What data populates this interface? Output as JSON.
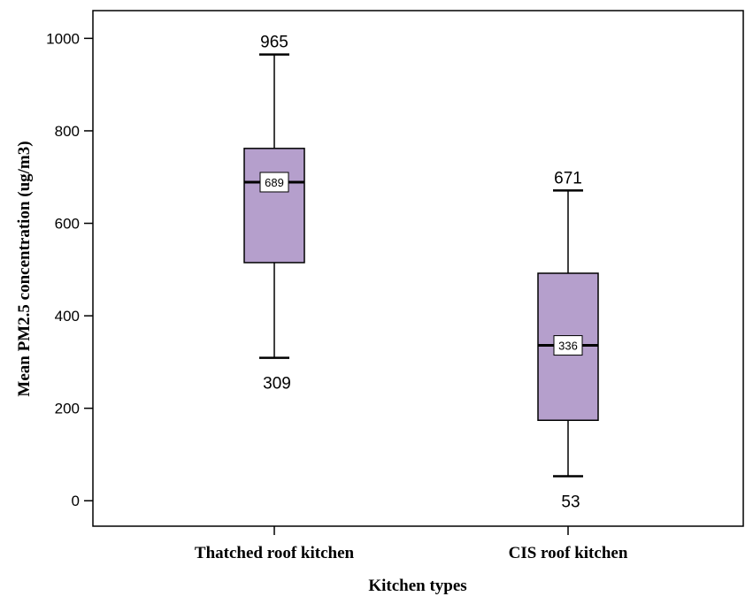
{
  "chart_data": {
    "type": "boxplot",
    "xlabel": "Kitchen types",
    "ylabel": "Mean PM2.5 concentration (ug/m3)",
    "ylim": [
      -55,
      1060
    ],
    "yticks": [
      0,
      200,
      400,
      600,
      800,
      1000
    ],
    "grid": false,
    "box_color": "#b59fcc",
    "categories": [
      "Thatched roof kitchen",
      "CIS roof kitchen"
    ],
    "boxes": [
      {
        "category": "Thatched roof kitchen",
        "min": 309,
        "q1": 515,
        "median": 689,
        "q3": 762,
        "max": 965,
        "max_label": "965",
        "median_label": "689",
        "min_label": "309"
      },
      {
        "category": "CIS roof kitchen",
        "min": 53,
        "q1": 174,
        "median": 336,
        "q3": 492,
        "max": 671,
        "max_label": "671",
        "median_label": "336",
        "min_label": "53"
      }
    ]
  }
}
